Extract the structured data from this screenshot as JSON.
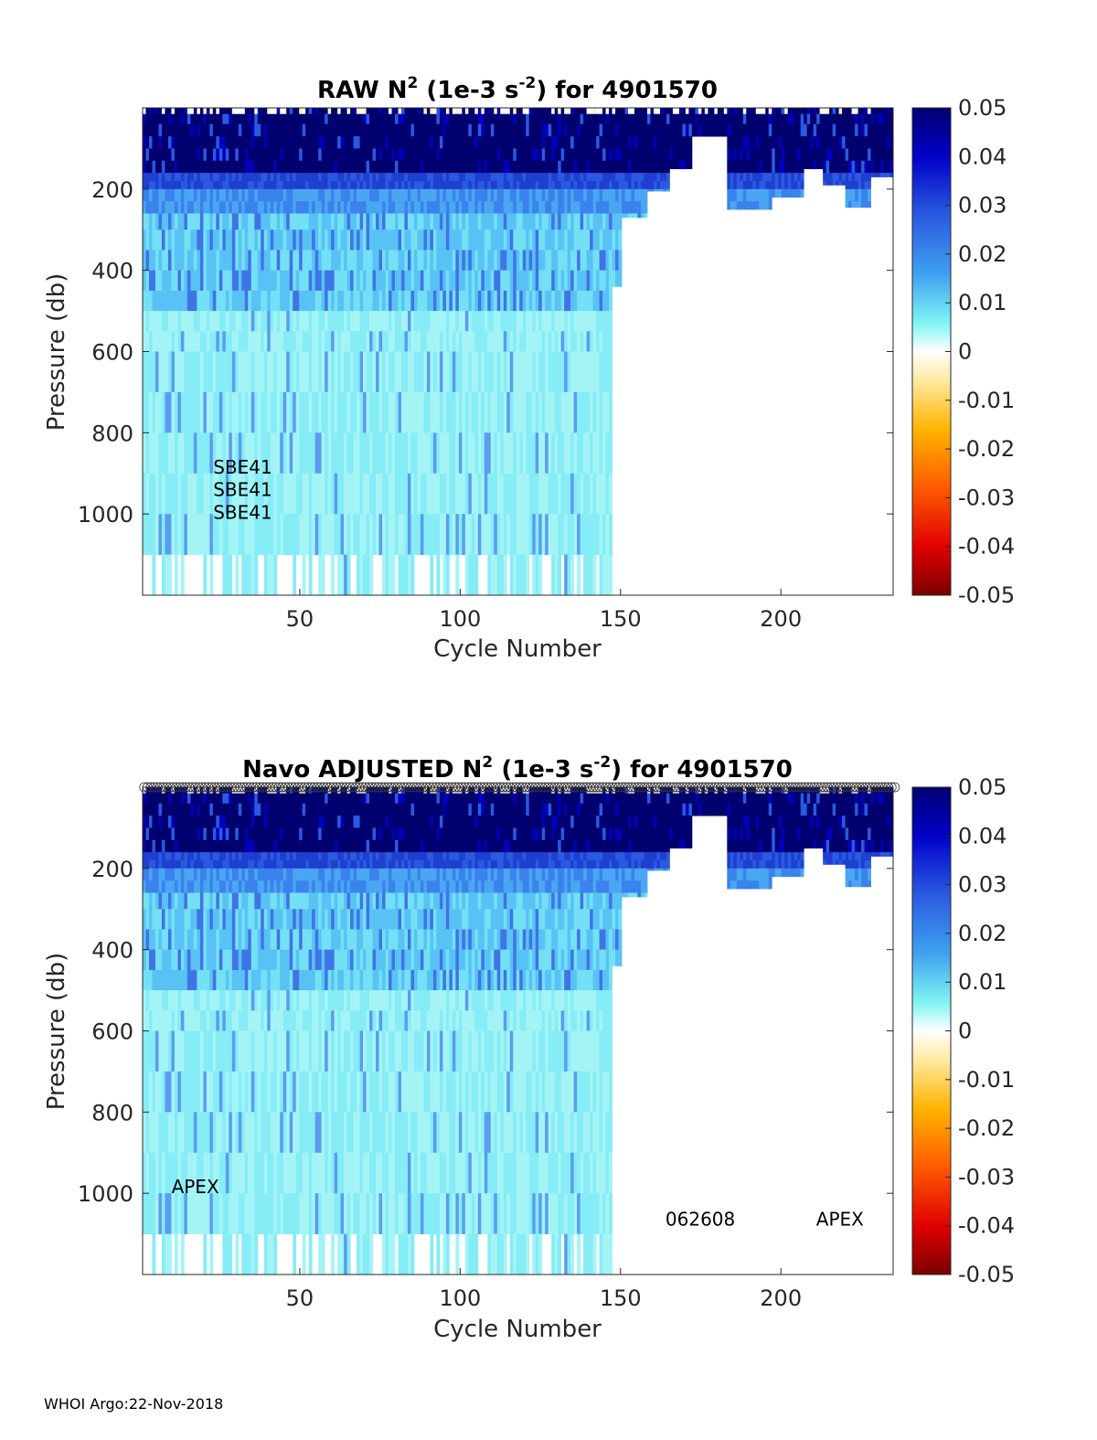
{
  "footer": "WHOI Argo:22-Nov-2018",
  "chart_data": [
    {
      "type": "heatmap",
      "title_prefix": "RAW N",
      "title_sup": "2",
      "title_units_open": " (1e-3 s",
      "title_units_sup": "-2",
      "title_suffix": ") for 4901570",
      "xlabel": "Cycle Number",
      "ylabel": "Pressure (db)",
      "xlim": [
        1,
        235
      ],
      "ylim": [
        0,
        1200
      ],
      "y_reversed": true,
      "xticks": [
        50,
        100,
        150,
        200
      ],
      "yticks": [
        200,
        400,
        600,
        800,
        1000
      ],
      "colorbar": {
        "ticks": [
          "0.05",
          "0.04",
          "0.03",
          "0.02",
          "0.01",
          "0",
          "-0.01",
          "-0.02",
          "-0.03",
          "-0.04",
          "-0.05"
        ],
        "range": [
          -0.05,
          0.05
        ]
      },
      "annotations": [
        {
          "text": "SBE41",
          "x": 23,
          "y": 900
        },
        {
          "text": "SBE41",
          "x": 23,
          "y": 956
        },
        {
          "text": "SBE41",
          "x": 23,
          "y": 1012
        }
      ],
      "profile_markers": false
    },
    {
      "type": "heatmap",
      "title_prefix": "Navo  ADJUSTED N",
      "title_sup": "2",
      "title_units_open": " (1e-3 s",
      "title_units_sup": "-2",
      "title_suffix": ") for 4901570",
      "xlabel": "Cycle Number",
      "ylabel": "Pressure (db)",
      "xlim": [
        1,
        235
      ],
      "ylim": [
        0,
        1200
      ],
      "y_reversed": true,
      "xticks": [
        50,
        100,
        150,
        200
      ],
      "yticks": [
        200,
        400,
        600,
        800,
        1000
      ],
      "colorbar": {
        "ticks": [
          "0.05",
          "0.04",
          "0.03",
          "0.02",
          "0.01",
          "0",
          "-0.01",
          "-0.02",
          "-0.03",
          "-0.04",
          "-0.05"
        ],
        "range": [
          -0.05,
          0.05
        ]
      },
      "annotations": [
        {
          "text": "APEX",
          "x": 10,
          "y": 1000
        },
        {
          "text": "062608",
          "x": 164,
          "y": 1080
        },
        {
          "text": "APEX",
          "x": 211,
          "y": 1080
        }
      ],
      "profile_markers": true
    }
  ]
}
